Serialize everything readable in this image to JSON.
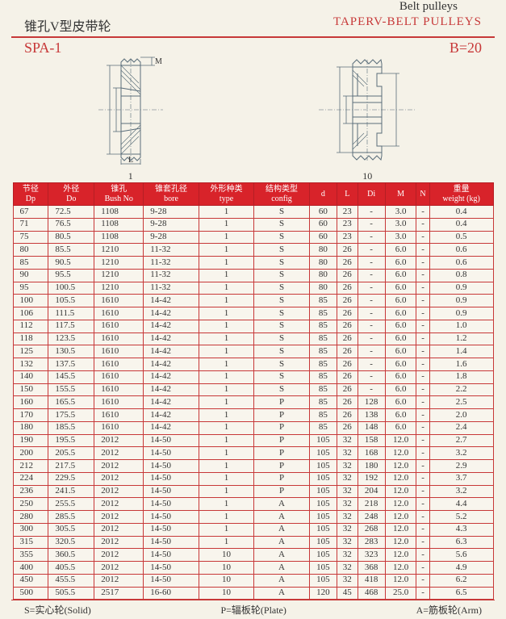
{
  "top": {
    "belt_pulleys": "Belt pulleys",
    "title_zh": "锥孔V型皮带轮",
    "title_en": "TAPERV-BELT PULLEYS",
    "spa": "SPA-1",
    "b20": "B=20",
    "diag1_label": "1",
    "diag1_M": "M",
    "diag1_L": "L",
    "diag2_label": "10"
  },
  "columns": [
    {
      "zh": "节径",
      "en": "Dp"
    },
    {
      "zh": "外径",
      "en": "Do"
    },
    {
      "zh": "锥孔",
      "en": "Bush No"
    },
    {
      "zh": "锥套孔径",
      "en": "bore"
    },
    {
      "zh": "外形种类",
      "en": "type"
    },
    {
      "zh": "结构类型",
      "en": "config"
    },
    {
      "zh": "",
      "en": "d"
    },
    {
      "zh": "",
      "en": "L"
    },
    {
      "zh": "",
      "en": "Di"
    },
    {
      "zh": "",
      "en": "M"
    },
    {
      "zh": "",
      "en": "N"
    },
    {
      "zh": "重量",
      "en": "weight (kg)"
    }
  ],
  "rows": [
    [
      "67",
      "72.5",
      "1108",
      "9-28",
      "1",
      "S",
      "60",
      "23",
      "-",
      "3.0",
      "-",
      "0.4"
    ],
    [
      "71",
      "76.5",
      "1108",
      "9-28",
      "1",
      "S",
      "60",
      "23",
      "-",
      "3.0",
      "-",
      "0.4"
    ],
    [
      "75",
      "80.5",
      "1108",
      "9-28",
      "1",
      "S",
      "60",
      "23",
      "-",
      "3.0",
      "-",
      "0.5"
    ],
    [
      "80",
      "85.5",
      "1210",
      "11-32",
      "1",
      "S",
      "80",
      "26",
      "-",
      "6.0",
      "-",
      "0.6"
    ],
    [
      "85",
      "90.5",
      "1210",
      "11-32",
      "1",
      "S",
      "80",
      "26",
      "-",
      "6.0",
      "-",
      "0.6"
    ],
    [
      "90",
      "95.5",
      "1210",
      "11-32",
      "1",
      "S",
      "80",
      "26",
      "-",
      "6.0",
      "-",
      "0.8"
    ],
    [
      "95",
      "100.5",
      "1210",
      "11-32",
      "1",
      "S",
      "80",
      "26",
      "-",
      "6.0",
      "-",
      "0.9"
    ],
    [
      "100",
      "105.5",
      "1610",
      "14-42",
      "1",
      "S",
      "85",
      "26",
      "-",
      "6.0",
      "-",
      "0.9"
    ],
    [
      "106",
      "111.5",
      "1610",
      "14-42",
      "1",
      "S",
      "85",
      "26",
      "-",
      "6.0",
      "-",
      "0.9"
    ],
    [
      "112",
      "117.5",
      "1610",
      "14-42",
      "1",
      "S",
      "85",
      "26",
      "-",
      "6.0",
      "-",
      "1.0"
    ],
    [
      "118",
      "123.5",
      "1610",
      "14-42",
      "1",
      "S",
      "85",
      "26",
      "-",
      "6.0",
      "-",
      "1.2"
    ],
    [
      "125",
      "130.5",
      "1610",
      "14-42",
      "1",
      "S",
      "85",
      "26",
      "-",
      "6.0",
      "-",
      "1.4"
    ],
    [
      "132",
      "137.5",
      "1610",
      "14-42",
      "1",
      "S",
      "85",
      "26",
      "-",
      "6.0",
      "-",
      "1.6"
    ],
    [
      "140",
      "145.5",
      "1610",
      "14-42",
      "1",
      "S",
      "85",
      "26",
      "-",
      "6.0",
      "-",
      "1.8"
    ],
    [
      "150",
      "155.5",
      "1610",
      "14-42",
      "1",
      "S",
      "85",
      "26",
      "-",
      "6.0",
      "-",
      "2.2"
    ],
    [
      "160",
      "165.5",
      "1610",
      "14-42",
      "1",
      "P",
      "85",
      "26",
      "128",
      "6.0",
      "-",
      "2.5"
    ],
    [
      "170",
      "175.5",
      "1610",
      "14-42",
      "1",
      "P",
      "85",
      "26",
      "138",
      "6.0",
      "-",
      "2.0"
    ],
    [
      "180",
      "185.5",
      "1610",
      "14-42",
      "1",
      "P",
      "85",
      "26",
      "148",
      "6.0",
      "-",
      "2.4"
    ],
    [
      "190",
      "195.5",
      "2012",
      "14-50",
      "1",
      "P",
      "105",
      "32",
      "158",
      "12.0",
      "-",
      "2.7"
    ],
    [
      "200",
      "205.5",
      "2012",
      "14-50",
      "1",
      "P",
      "105",
      "32",
      "168",
      "12.0",
      "-",
      "3.2"
    ],
    [
      "212",
      "217.5",
      "2012",
      "14-50",
      "1",
      "P",
      "105",
      "32",
      "180",
      "12.0",
      "-",
      "2.9"
    ],
    [
      "224",
      "229.5",
      "2012",
      "14-50",
      "1",
      "P",
      "105",
      "32",
      "192",
      "12.0",
      "-",
      "3.7"
    ],
    [
      "236",
      "241.5",
      "2012",
      "14-50",
      "1",
      "P",
      "105",
      "32",
      "204",
      "12.0",
      "-",
      "3.2"
    ],
    [
      "250",
      "255.5",
      "2012",
      "14-50",
      "1",
      "A",
      "105",
      "32",
      "218",
      "12.0",
      "-",
      "4.4"
    ],
    [
      "280",
      "285.5",
      "2012",
      "14-50",
      "1",
      "A",
      "105",
      "32",
      "248",
      "12.0",
      "-",
      "5.2"
    ],
    [
      "300",
      "305.5",
      "2012",
      "14-50",
      "1",
      "A",
      "105",
      "32",
      "268",
      "12.0",
      "-",
      "4.3"
    ],
    [
      "315",
      "320.5",
      "2012",
      "14-50",
      "1",
      "A",
      "105",
      "32",
      "283",
      "12.0",
      "-",
      "6.3"
    ],
    [
      "355",
      "360.5",
      "2012",
      "14-50",
      "10",
      "A",
      "105",
      "32",
      "323",
      "12.0",
      "-",
      "5.6"
    ],
    [
      "400",
      "405.5",
      "2012",
      "14-50",
      "10",
      "A",
      "105",
      "32",
      "368",
      "12.0",
      "-",
      "4.9"
    ],
    [
      "450",
      "455.5",
      "2012",
      "14-50",
      "10",
      "A",
      "105",
      "32",
      "418",
      "12.0",
      "-",
      "6.2"
    ],
    [
      "500",
      "505.5",
      "2517",
      "16-60",
      "10",
      "A",
      "120",
      "45",
      "468",
      "25.0",
      "-",
      "6.5"
    ]
  ],
  "footer": {
    "s": "S=实心轮(Solid)",
    "p": "P=辐板轮(Plate)",
    "a": "A=筋板轮(Arm)"
  }
}
